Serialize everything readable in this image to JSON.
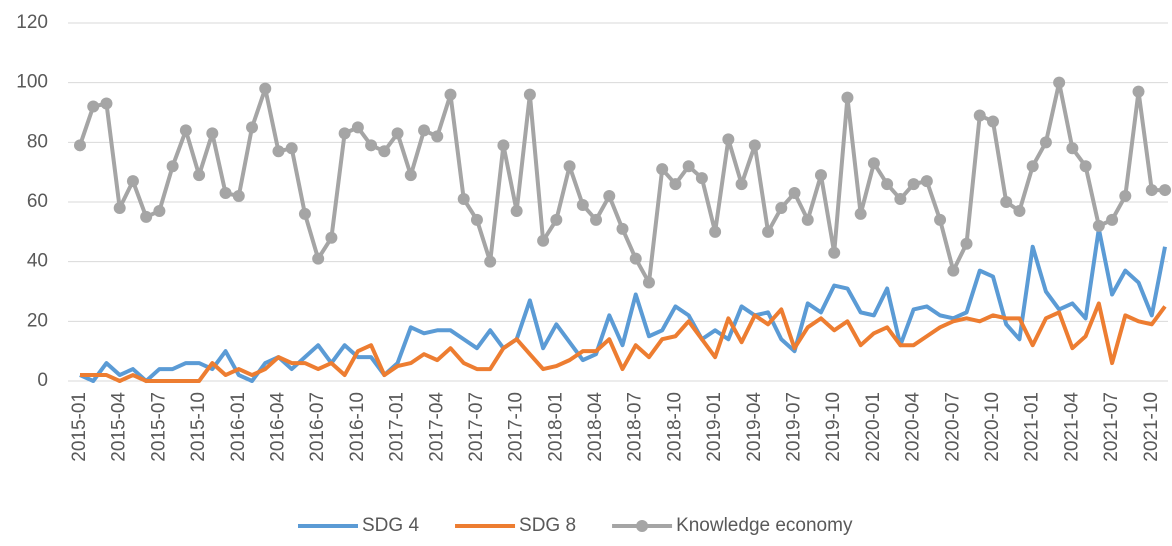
{
  "chart_data": {
    "type": "line",
    "categories": [
      "2015-01",
      null,
      null,
      "2015-04",
      null,
      null,
      "2015-07",
      null,
      null,
      "2015-10",
      null,
      null,
      "2016-01",
      null,
      null,
      "2016-04",
      null,
      null,
      "2016-07",
      null,
      null,
      "2016-10",
      null,
      null,
      "2017-01",
      null,
      null,
      "2017-04",
      null,
      null,
      "2017-07",
      null,
      null,
      "2017-10",
      null,
      null,
      "2018-01",
      null,
      null,
      "2018-04",
      null,
      null,
      "2018-07",
      null,
      null,
      "2018-10",
      null,
      null,
      "2019-01",
      null,
      null,
      "2019-04",
      null,
      null,
      "2019-07",
      null,
      null,
      "2019-10",
      null,
      null,
      "2020-01",
      null,
      null,
      "2020-04",
      null,
      null,
      "2020-07",
      null,
      null,
      "2020-10",
      null,
      null,
      "2021-01",
      null,
      null,
      "2021-04",
      null,
      null,
      "2021-07",
      null,
      null,
      "2021-10",
      null
    ],
    "series": [
      {
        "name": "SDG 4",
        "color": "#5b9bd5",
        "markers": false,
        "values": [
          2,
          0,
          6,
          2,
          4,
          0,
          4,
          4,
          6,
          6,
          4,
          10,
          2,
          0,
          6,
          8,
          4,
          8,
          12,
          6,
          12,
          8,
          8,
          2,
          6,
          18,
          16,
          17,
          17,
          14,
          11,
          17,
          11,
          14,
          27,
          11,
          19,
          13,
          7,
          9,
          22,
          12,
          29,
          15,
          17,
          25,
          22,
          14,
          17,
          14,
          25,
          22,
          23,
          14,
          10,
          26,
          23,
          32,
          31,
          23,
          22,
          31,
          12,
          24,
          25,
          22,
          21,
          23,
          37,
          35,
          19,
          14,
          45,
          30,
          24,
          26,
          21,
          51,
          29,
          37,
          33,
          22,
          45
        ]
      },
      {
        "name": "SDG 8",
        "color": "#ed7d31",
        "markers": false,
        "values": [
          2,
          2,
          2,
          0,
          2,
          0,
          0,
          0,
          0,
          0,
          6,
          2,
          4,
          2,
          4,
          8,
          6,
          6,
          4,
          6,
          2,
          10,
          12,
          2,
          5,
          6,
          9,
          7,
          11,
          6,
          4,
          4,
          11,
          14,
          9,
          4,
          5,
          7,
          10,
          10,
          14,
          4,
          12,
          8,
          14,
          15,
          20,
          14,
          8,
          21,
          13,
          22,
          19,
          24,
          11,
          18,
          21,
          17,
          20,
          12,
          16,
          18,
          12,
          12,
          15,
          18,
          20,
          21,
          20,
          22,
          21,
          21,
          12,
          21,
          23,
          11,
          15,
          26,
          6,
          22,
          20,
          19,
          25
        ]
      },
      {
        "name": "Knowledge economy",
        "color": "#a5a5a5",
        "markers": true,
        "values": [
          79,
          92,
          93,
          58,
          67,
          55,
          57,
          72,
          84,
          69,
          83,
          63,
          62,
          85,
          98,
          77,
          78,
          56,
          41,
          48,
          83,
          85,
          79,
          77,
          83,
          69,
          84,
          82,
          96,
          61,
          54,
          40,
          79,
          57,
          96,
          47,
          54,
          72,
          59,
          54,
          62,
          51,
          41,
          33,
          71,
          66,
          72,
          68,
          50,
          81,
          66,
          79,
          50,
          58,
          63,
          54,
          69,
          43,
          95,
          56,
          73,
          66,
          61,
          66,
          67,
          54,
          37,
          46,
          89,
          87,
          60,
          57,
          72,
          80,
          100,
          78,
          72,
          52,
          54,
          62,
          97,
          64,
          64
        ]
      }
    ],
    "ylim": [
      0,
      120
    ],
    "yticks": [
      0,
      20,
      40,
      60,
      80,
      100,
      120
    ],
    "grid": true,
    "legend": "bottom"
  }
}
